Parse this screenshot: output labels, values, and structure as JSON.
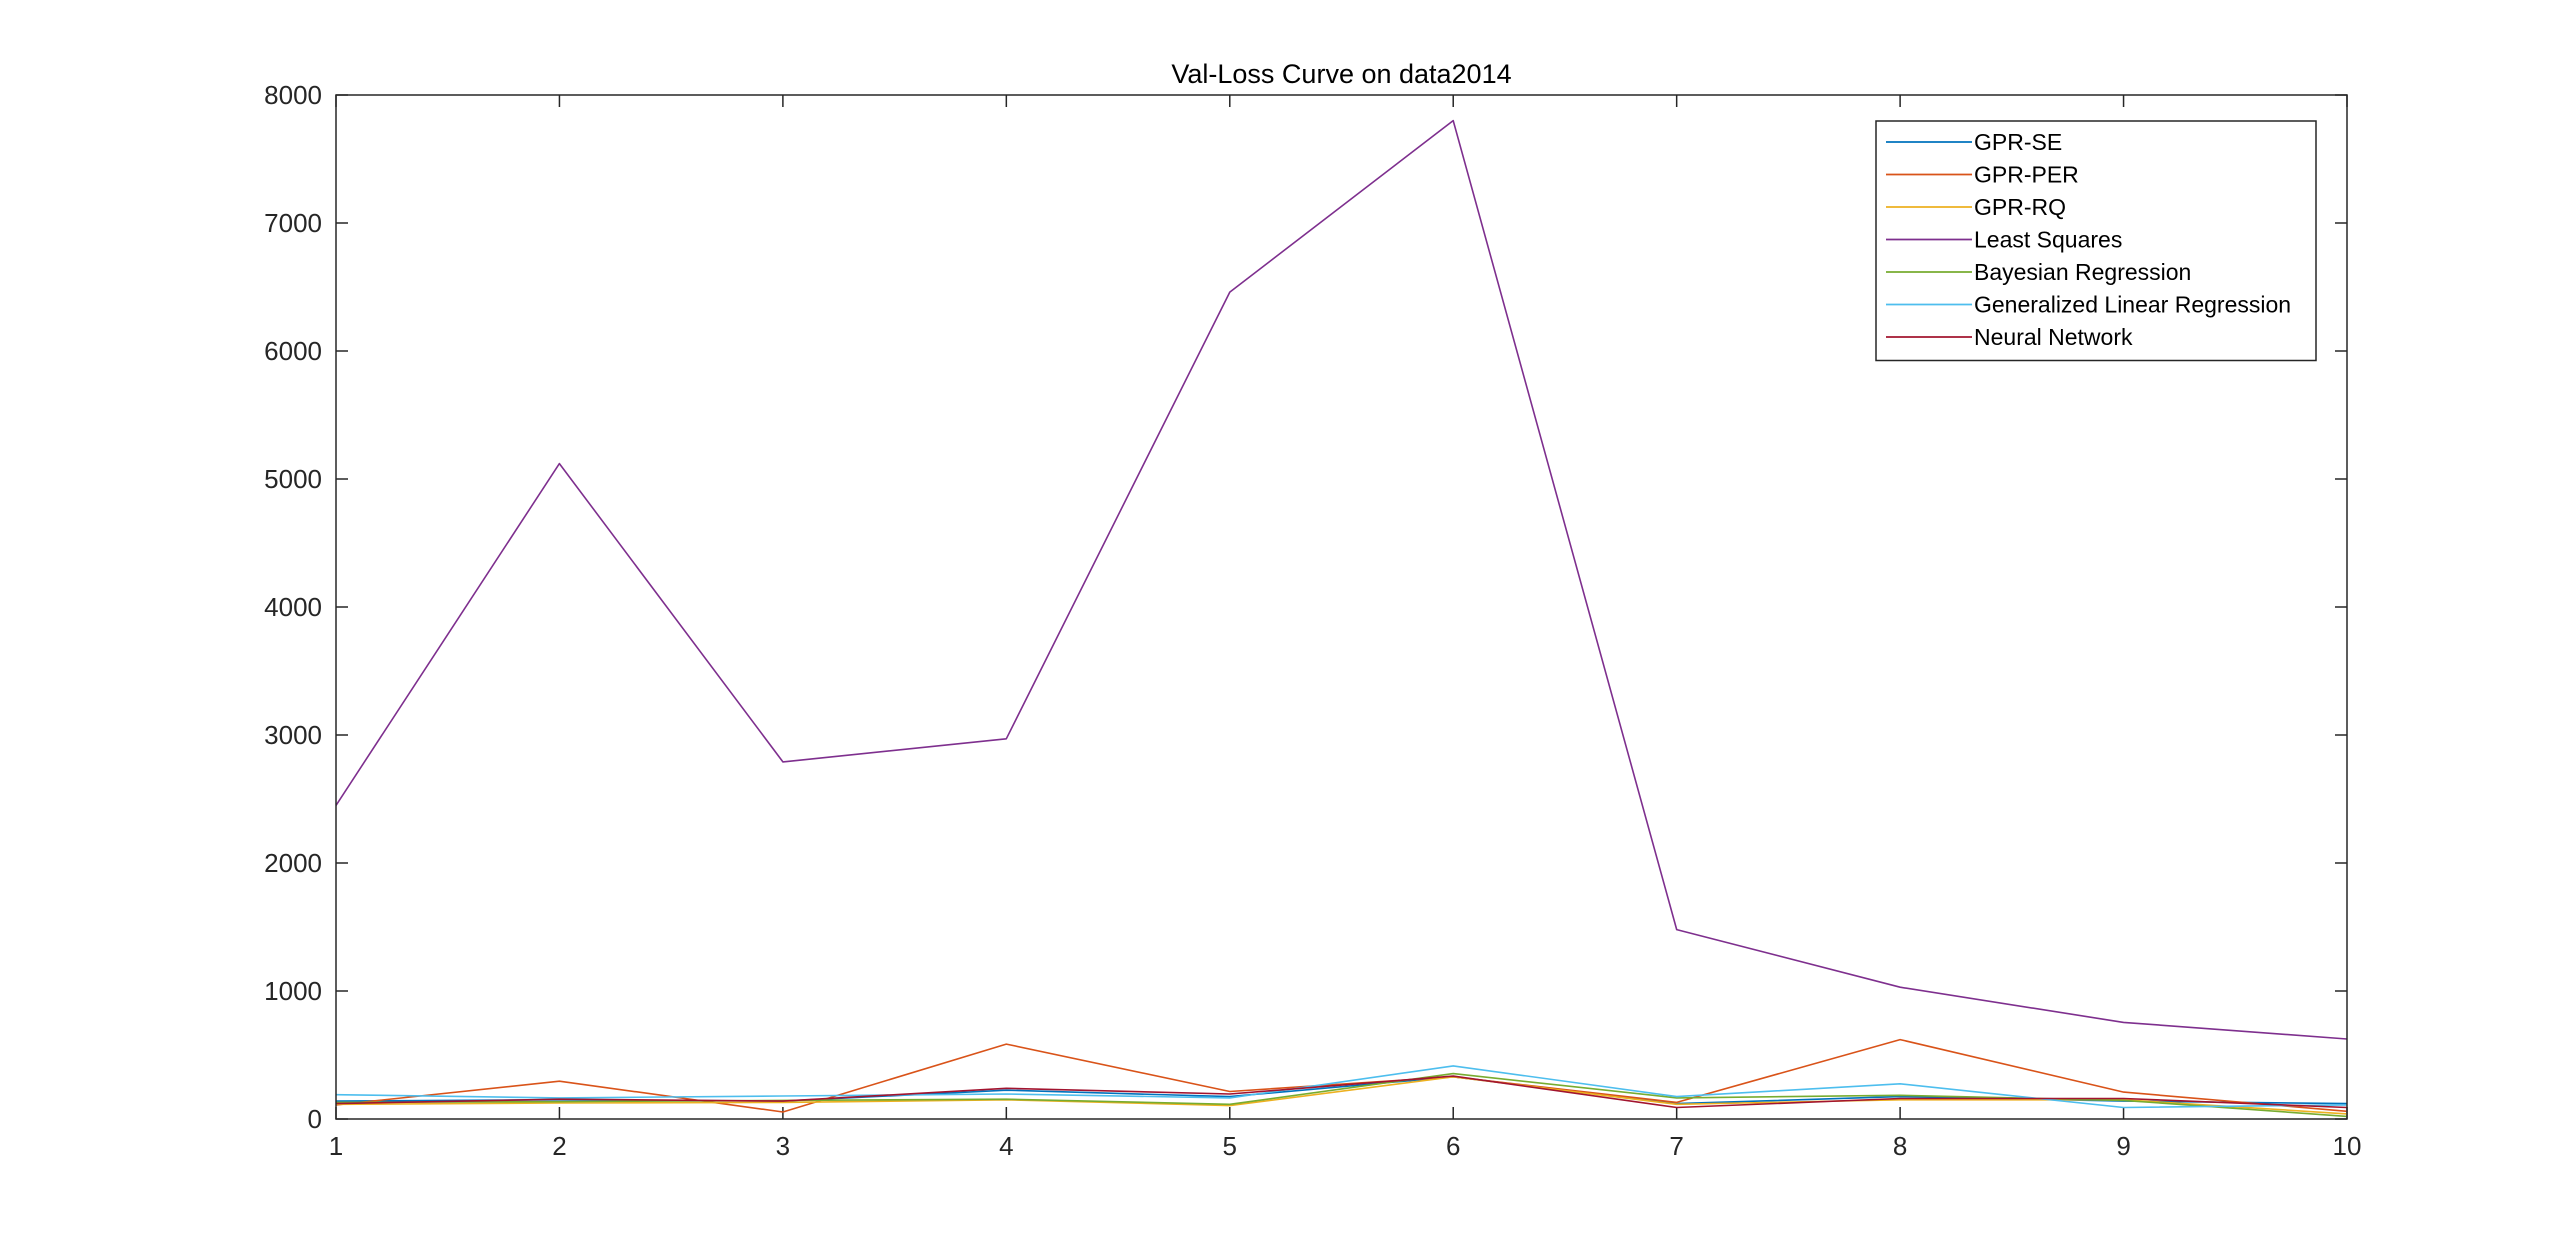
{
  "chart_data": {
    "type": "line",
    "title": "Val-Loss Curve on data2014",
    "xlabel": "",
    "ylabel": "",
    "x": [
      1,
      2,
      3,
      4,
      5,
      6,
      7,
      8,
      9,
      10
    ],
    "xlim": [
      1,
      10
    ],
    "ylim": [
      0,
      8000
    ],
    "xticks": [
      1,
      2,
      3,
      4,
      5,
      6,
      7,
      8,
      9,
      10
    ],
    "yticks": [
      0,
      1000,
      2000,
      3000,
      4000,
      5000,
      6000,
      7000,
      8000
    ],
    "grid": false,
    "legend_position": "top-right",
    "series": [
      {
        "name": "GPR-SE",
        "color": "#0072BD",
        "values": [
          140,
          150,
          140,
          225,
          175,
          330,
          120,
          175,
          140,
          120
        ]
      },
      {
        "name": "GPR-PER",
        "color": "#D95319",
        "values": [
          110,
          295,
          55,
          585,
          215,
          330,
          130,
          620,
          210,
          60
        ]
      },
      {
        "name": "GPR-RQ",
        "color": "#EDB120",
        "values": [
          115,
          125,
          130,
          150,
          105,
          330,
          115,
          150,
          150,
          40
        ]
      },
      {
        "name": "Least Squares",
        "color": "#7E2F8E",
        "values": [
          2450,
          5120,
          2790,
          2970,
          6460,
          7800,
          1480,
          1030,
          755,
          625
        ]
      },
      {
        "name": "Bayesian Regression",
        "color": "#77AC30",
        "values": [
          130,
          135,
          145,
          155,
          115,
          355,
          165,
          185,
          145,
          20
        ]
      },
      {
        "name": "Generalized Linear Regression",
        "color": "#4DBEEE",
        "values": [
          190,
          165,
          180,
          195,
          165,
          415,
          175,
          275,
          90,
          110
        ]
      },
      {
        "name": "Neural Network",
        "color": "#A2142F",
        "values": [
          120,
          155,
          140,
          240,
          195,
          335,
          90,
          160,
          160,
          90
        ]
      }
    ]
  }
}
